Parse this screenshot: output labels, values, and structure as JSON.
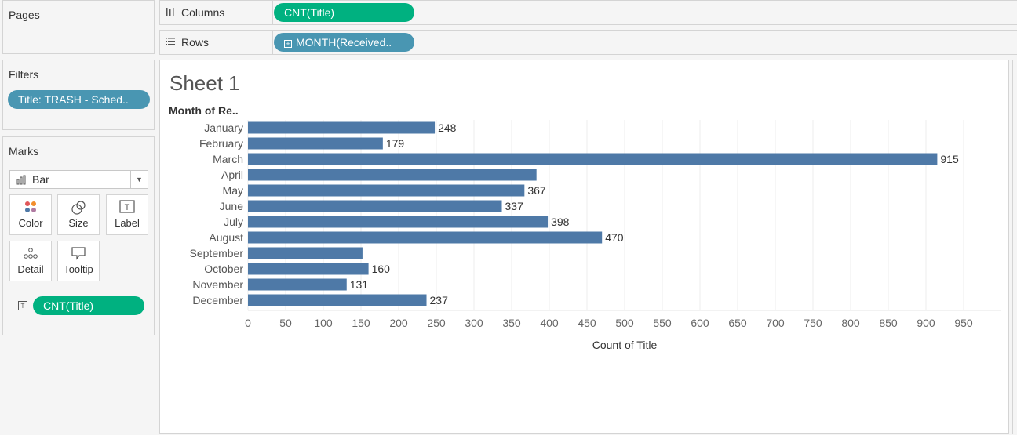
{
  "pages": {
    "title": "Pages"
  },
  "filters": {
    "title": "Filters",
    "pill": "Title: TRASH - Sched.."
  },
  "marks": {
    "title": "Marks",
    "mark_type": "Bar",
    "buttons": {
      "color": "Color",
      "size": "Size",
      "label": "Label",
      "detail": "Detail",
      "tooltip": "Tooltip"
    },
    "field_pill": "CNT(Title)"
  },
  "shelves": {
    "columns": {
      "label": "Columns",
      "pill": "CNT(Title)"
    },
    "rows": {
      "label": "Rows",
      "pill": "MONTH(Received.."
    }
  },
  "sheet": {
    "title": "Sheet 1",
    "row_header": "Month of Re.."
  },
  "chart_data": {
    "type": "bar",
    "orientation": "horizontal",
    "categories": [
      "January",
      "February",
      "March",
      "April",
      "May",
      "June",
      "July",
      "August",
      "September",
      "October",
      "November",
      "December"
    ],
    "values": [
      248,
      179,
      915,
      383,
      367,
      337,
      398,
      470,
      152,
      160,
      131,
      237
    ],
    "labels": [
      "248",
      "179",
      "915",
      "",
      "367",
      "337",
      "398",
      "470",
      "",
      "160",
      "131",
      "237"
    ],
    "xlabel": "Count of Title",
    "xlim": [
      0,
      950
    ],
    "xticks": [
      0,
      50,
      100,
      150,
      200,
      250,
      300,
      350,
      400,
      450,
      500,
      550,
      600,
      650,
      700,
      750,
      800,
      850,
      900,
      950
    ],
    "grid": true,
    "bar_color": "#4e79a7"
  },
  "colors": {
    "green_pill": "#00b180",
    "blue_pill": "#4996b2"
  }
}
